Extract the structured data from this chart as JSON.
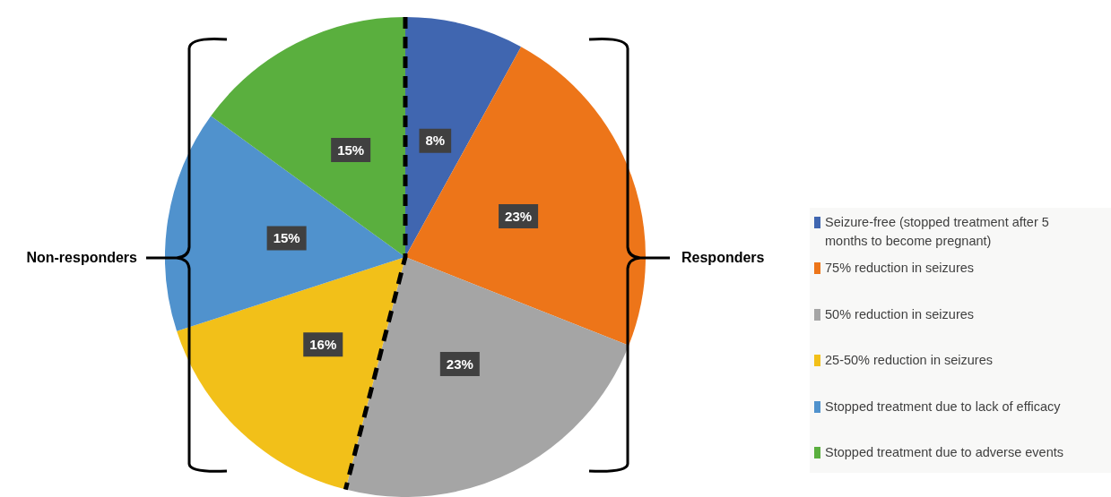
{
  "chart_data": {
    "type": "pie",
    "categories": [
      "Seizure-free (stopped treatment after 5 months to become pregnant)",
      "75% reduction in seizures",
      "50% reduction in seizures",
      "25-50% reduction in seizures",
      "Stopped treatment due to lack of efficacy",
      "Stopped treatment due to adverse events"
    ],
    "values": [
      8,
      23,
      23,
      16,
      15,
      15
    ],
    "colors": [
      "#4066b0",
      "#ed7519",
      "#a5a5a5",
      "#f2c019",
      "#5092cd",
      "#5aaf3e"
    ],
    "value_labels": [
      "8%",
      "23%",
      "23%",
      "16%",
      "15%",
      "15%"
    ],
    "legend": "right",
    "annotations": [
      "Non-responders",
      "Responders"
    ]
  }
}
